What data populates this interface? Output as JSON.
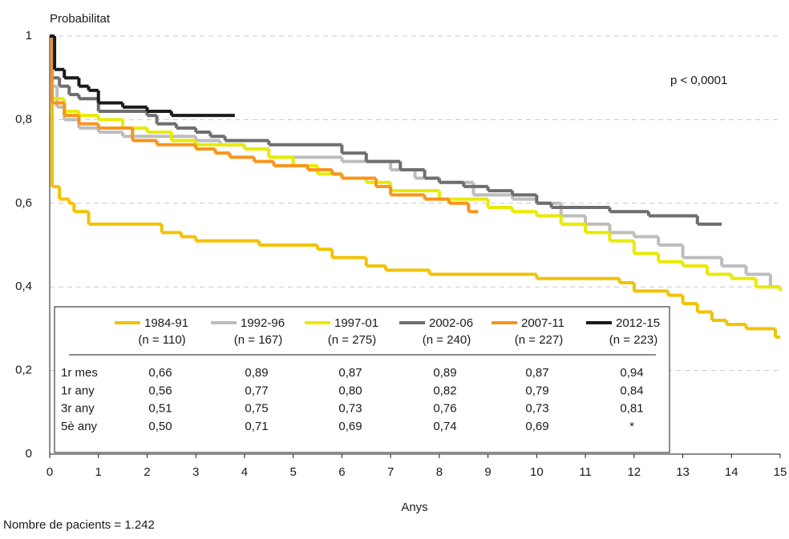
{
  "chart_data": {
    "type": "step",
    "y_label": "Probabilitat",
    "x_label": "Anys",
    "annotation": "p < 0,0001",
    "footnote": "Nombre de pacients = 1.242",
    "xlim": [
      0,
      15
    ],
    "ylim": [
      0,
      1
    ],
    "xticks": [
      0,
      1,
      2,
      3,
      4,
      5,
      6,
      7,
      8,
      9,
      10,
      11,
      12,
      13,
      14,
      15
    ],
    "yticks": [
      0,
      {
        "value": 0.2,
        "label": "0,2"
      },
      {
        "value": 0.4,
        "label": "0,4"
      },
      {
        "value": 0.6,
        "label": "0,6"
      },
      {
        "value": 0.8,
        "label": "0,8"
      },
      1
    ],
    "grid": true,
    "series": [
      {
        "name": "1984-91",
        "n_label": "(n = 110)",
        "color": "#f2c200",
        "x": [
          0,
          0.05,
          0.2,
          0.4,
          0.5,
          0.8,
          1.5,
          2.3,
          2.7,
          3.0,
          4.3,
          5.5,
          5.8,
          6.5,
          6.9,
          7.8,
          10.0,
          11.7,
          12.0,
          12.7,
          13.0,
          13.3,
          13.6,
          13.9,
          14.3,
          14.9,
          15
        ],
        "values": [
          1,
          0.64,
          0.61,
          0.6,
          0.58,
          0.55,
          0.55,
          0.53,
          0.52,
          0.51,
          0.5,
          0.49,
          0.47,
          0.45,
          0.44,
          0.43,
          0.42,
          0.41,
          0.39,
          0.38,
          0.36,
          0.34,
          0.32,
          0.31,
          0.3,
          0.28,
          0.28
        ]
      },
      {
        "name": "1992-96",
        "n_label": "(n = 167)",
        "color": "#bdbdbd",
        "x": [
          0,
          0.05,
          0.15,
          0.3,
          0.6,
          1.0,
          1.5,
          3.0,
          3.5,
          4.0,
          4.5,
          6.0,
          7.0,
          7.5,
          8.0,
          8.7,
          9.5,
          10.0,
          10.5,
          11.0,
          11.5,
          12.0,
          12.5,
          13.0,
          13.8,
          14.3,
          14.8,
          15
        ],
        "values": [
          1,
          0.88,
          0.83,
          0.8,
          0.78,
          0.77,
          0.76,
          0.75,
          0.74,
          0.73,
          0.71,
          0.7,
          0.68,
          0.66,
          0.65,
          0.62,
          0.61,
          0.6,
          0.57,
          0.55,
          0.53,
          0.52,
          0.5,
          0.47,
          0.45,
          0.43,
          0.4,
          0.4
        ]
      },
      {
        "name": "1997-01",
        "n_label": "(n = 275)",
        "color": "#e8ea00",
        "x": [
          0,
          0.05,
          0.3,
          0.6,
          1.0,
          1.5,
          2.0,
          2.5,
          3.0,
          4.0,
          4.5,
          5.0,
          5.5,
          6.0,
          6.5,
          7.0,
          8.0,
          9.0,
          9.5,
          10.0,
          10.5,
          11.0,
          11.5,
          12.0,
          12.5,
          13.0,
          13.5,
          14.0,
          14.5,
          15
        ],
        "values": [
          1,
          0.85,
          0.82,
          0.81,
          0.8,
          0.78,
          0.77,
          0.75,
          0.74,
          0.73,
          0.71,
          0.69,
          0.67,
          0.66,
          0.65,
          0.63,
          0.61,
          0.59,
          0.58,
          0.57,
          0.55,
          0.53,
          0.51,
          0.48,
          0.46,
          0.45,
          0.43,
          0.42,
          0.4,
          0.39
        ]
      },
      {
        "name": "2002-06",
        "n_label": "(n = 240)",
        "color": "#6e6e6e",
        "x": [
          0,
          0.05,
          0.2,
          0.4,
          0.6,
          1.0,
          2.0,
          2.2,
          2.6,
          3.0,
          3.3,
          3.6,
          4.5,
          6.0,
          6.5,
          7.2,
          7.7,
          8.0,
          8.5,
          9.0,
          9.5,
          10.0,
          10.3,
          11.5,
          12.3,
          13.3,
          13.8
        ],
        "values": [
          1,
          0.9,
          0.88,
          0.86,
          0.85,
          0.82,
          0.81,
          0.79,
          0.78,
          0.77,
          0.76,
          0.75,
          0.74,
          0.72,
          0.7,
          0.68,
          0.66,
          0.65,
          0.64,
          0.63,
          0.62,
          0.6,
          0.59,
          0.58,
          0.57,
          0.55,
          0.55
        ]
      },
      {
        "name": "2007-11",
        "n_label": "(n = 227)",
        "color": "#f7941d",
        "x": [
          0,
          0.05,
          0.3,
          0.6,
          1.0,
          1.7,
          2.2,
          3.0,
          3.4,
          3.7,
          4.2,
          4.6,
          5.3,
          5.8,
          6.0,
          6.7,
          7.0,
          7.7,
          8.2,
          8.6,
          8.8
        ],
        "values": [
          1,
          0.84,
          0.81,
          0.79,
          0.78,
          0.75,
          0.74,
          0.73,
          0.72,
          0.71,
          0.7,
          0.69,
          0.68,
          0.67,
          0.66,
          0.64,
          0.62,
          0.61,
          0.6,
          0.58,
          0.58
        ]
      },
      {
        "name": "2012-15",
        "n_label": "(n = 223)",
        "color": "#1a1a1a",
        "x": [
          0,
          0.1,
          0.3,
          0.6,
          0.8,
          1.0,
          1.5,
          2.0,
          2.5,
          3.8
        ],
        "values": [
          1,
          0.92,
          0.9,
          0.88,
          0.87,
          0.84,
          0.83,
          0.82,
          0.81,
          0.81
        ]
      }
    ],
    "table": {
      "rows": [
        {
          "label": "1r mes",
          "cells": [
            "0,66",
            "0,89",
            "0,87",
            "0,89",
            "0,87",
            "0,94"
          ]
        },
        {
          "label": "1r any",
          "cells": [
            "0,56",
            "0,77",
            "0,80",
            "0,82",
            "0,79",
            "0,84"
          ]
        },
        {
          "label": "3r any",
          "cells": [
            "0,51",
            "0,75",
            "0,73",
            "0,76",
            "0,73",
            "0,81"
          ]
        },
        {
          "label": "5è any",
          "cells": [
            "0,50",
            "0,71",
            "0,69",
            "0,74",
            "0,69",
            "*"
          ]
        }
      ]
    }
  }
}
